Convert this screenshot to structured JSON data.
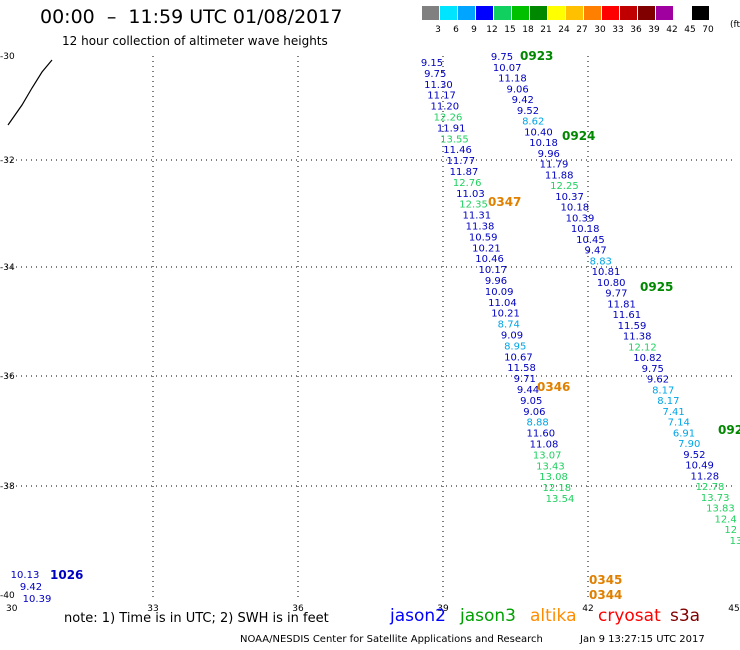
{
  "header": {
    "title": "00:00  –  11:59 UTC 01/08/2017",
    "subtitle": "12 hour collection of altimeter wave heights"
  },
  "colorbar": {
    "colors": [
      "#808080",
      "#00e5ff",
      "#00a5ff",
      "#0000ff",
      "#10d060",
      "#00c000",
      "#008800",
      "#ffff00",
      "#ffc000",
      "#ff8000",
      "#ff0000",
      "#c00000",
      "#800000",
      "#a000a0",
      "#ffffff",
      "#000000"
    ],
    "labels": [
      "3",
      "6",
      "9",
      "12",
      "15",
      "18",
      "21",
      "24",
      "27",
      "30",
      "33",
      "36",
      "39",
      "42",
      "45",
      "70"
    ],
    "unit": "(ft)"
  },
  "axes": {
    "x_ticks": [
      "30",
      "33",
      "36",
      "39",
      "42",
      "45"
    ],
    "y_ticks": [
      "-30",
      "-32",
      "-34",
      "-36",
      "-38",
      "-40"
    ]
  },
  "passes": [
    {
      "satellite": "jason3",
      "time": "0923",
      "time_color": "#008800",
      "readings": [
        "9.75",
        "10.07",
        "11.18",
        "9.06",
        "9.42",
        "9.52",
        "8.62",
        "10.40",
        "10.18",
        "9.96",
        "11.79",
        "11.88",
        "12.25",
        "10.37",
        "10.18",
        "10.39",
        "10.18",
        "10.45",
        "9.47",
        "8.83",
        "10.81",
        "10.80",
        "9.77",
        "11.81",
        "11.61",
        "11.59",
        "11.38",
        "12.12",
        "10.82",
        "9.75",
        "9.62",
        "8.17",
        "8.17",
        "7.41",
        "7.14",
        "6.91",
        "7.90",
        "9.52",
        "10.49",
        "11.28",
        "12.78",
        "13.73",
        "13.83",
        "12.4",
        "12",
        "13"
      ]
    },
    {
      "satellite": "jason3",
      "time": "0924",
      "time_color": "#008800",
      "readings": []
    },
    {
      "satellite": "jason3",
      "time": "0925",
      "time_color": "#008800",
      "readings": []
    },
    {
      "satellite": "jason3",
      "time": "092",
      "time_color": "#008800",
      "readings": []
    },
    {
      "satellite": "altika",
      "time": "0347",
      "time_color": "#e08000",
      "readings": [
        "9.15",
        "9.75",
        "11.30",
        "11.17",
        "11.20",
        "12.26",
        "11.91",
        "13.55",
        "11.46",
        "11.77",
        "11.87",
        "12.76",
        "11.03",
        "12.35",
        "11.31",
        "11.38",
        "10.59",
        "10.21",
        "10.46",
        "10.17",
        "9.96",
        "10.09",
        "11.04",
        "10.21",
        "8.74",
        "9.09",
        "8.95",
        "10.67",
        "11.58",
        "9.71",
        "9.44",
        "9.05",
        "9.06",
        "8.88",
        "11.60",
        "11.08",
        "13.07",
        "13.43",
        "13.08",
        "12.18",
        "13.54"
      ]
    },
    {
      "satellite": "altika",
      "time": "0346",
      "time_color": "#e08000",
      "readings": []
    },
    {
      "satellite": "altika",
      "time": "0345",
      "time_color": "#e08000",
      "readings": []
    },
    {
      "satellite": "altika",
      "time": "0344",
      "time_color": "#e08000",
      "readings": []
    },
    {
      "satellite": "jason2",
      "time": "1026",
      "time_color": "#0000c0",
      "readings": [
        "10.13",
        "9.42",
        "10.39"
      ]
    }
  ],
  "note": "note: 1) Time is in UTC; 2) SWH is in feet",
  "legend": [
    {
      "name": "jason2",
      "color": "#0000ff"
    },
    {
      "name": "jason3",
      "color": "#00a000"
    },
    {
      "name": "altika",
      "color": "#ff8c00"
    },
    {
      "name": "cryosat",
      "color": "#ff0000"
    },
    {
      "name": "s3a",
      "color": "#800000"
    }
  ],
  "footer": {
    "credit": "NOAA/NESDIS Center for Satellite Applications and Research",
    "timestamp": "Jan  9 13:27:15 UTC 2017"
  }
}
